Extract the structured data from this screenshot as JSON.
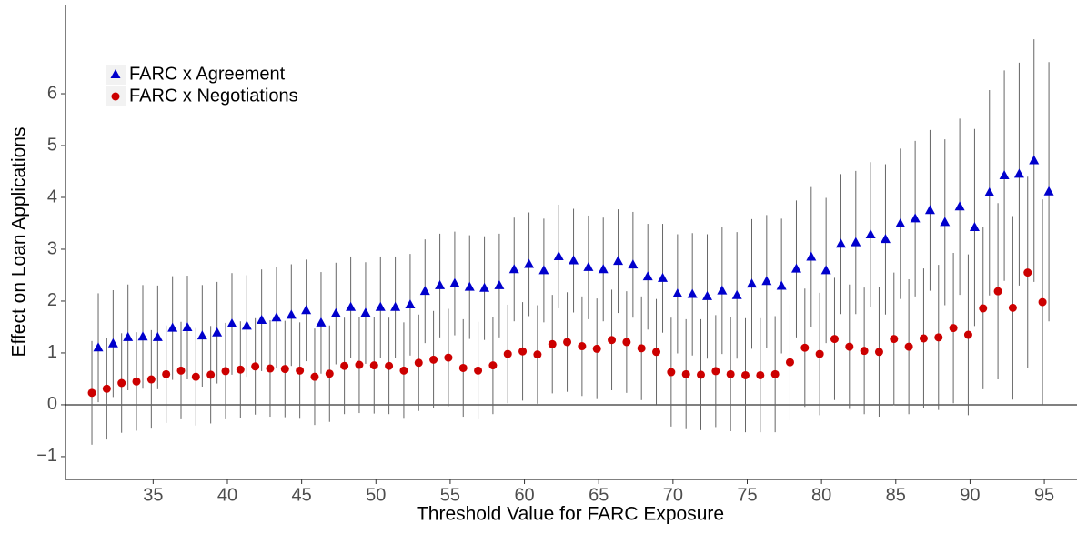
{
  "chart_data": {
    "type": "scatter",
    "xlabel": "Threshold Value for FARC Exposure",
    "ylabel": "Effect on Loan Applications",
    "x": [
      31,
      32,
      33,
      34,
      35,
      36,
      37,
      38,
      39,
      40,
      41,
      42,
      43,
      44,
      45,
      46,
      47,
      48,
      49,
      50,
      51,
      52,
      53,
      54,
      55,
      56,
      57,
      58,
      59,
      60,
      61,
      62,
      63,
      64,
      65,
      66,
      67,
      68,
      69,
      70,
      71,
      72,
      73,
      74,
      75,
      76,
      77,
      78,
      79,
      80,
      81,
      82,
      83,
      84,
      85,
      86,
      87,
      88,
      89,
      90,
      91,
      92,
      93,
      94,
      95
    ],
    "series": [
      {
        "name": "FARC x Agreement",
        "color": "#0000cc",
        "marker": "triangle",
        "values": [
          1.1,
          1.18,
          1.3,
          1.31,
          1.3,
          1.48,
          1.49,
          1.33,
          1.39,
          1.56,
          1.52,
          1.63,
          1.68,
          1.73,
          1.82,
          1.58,
          1.76,
          1.88,
          1.77,
          1.88,
          1.88,
          1.93,
          2.19,
          2.3,
          2.34,
          2.27,
          2.25,
          2.3,
          2.61,
          2.71,
          2.59,
          2.86,
          2.78,
          2.65,
          2.61,
          2.77,
          2.7,
          2.47,
          2.44,
          2.14,
          2.13,
          2.09,
          2.2,
          2.11,
          2.33,
          2.38,
          2.29,
          2.62,
          2.85,
          2.59,
          3.1,
          3.13,
          3.28,
          3.19,
          3.49,
          3.59,
          3.75,
          3.52,
          3.82,
          3.42,
          4.09,
          4.42,
          4.45,
          4.71,
          4.11
        ],
        "errors": [
          1.05,
          1.03,
          1.02,
          1.0,
          1.0,
          1.0,
          1.0,
          0.98,
          0.98,
          0.98,
          0.98,
          0.98,
          0.98,
          0.98,
          0.98,
          0.98,
          0.98,
          0.98,
          0.98,
          0.98,
          0.98,
          0.98,
          1.0,
          1.0,
          1.0,
          1.0,
          1.0,
          1.0,
          1.0,
          1.0,
          1.0,
          1.0,
          1.0,
          1.0,
          1.0,
          1.0,
          1.02,
          1.02,
          1.05,
          1.15,
          1.18,
          1.2,
          1.22,
          1.22,
          1.25,
          1.28,
          1.3,
          1.32,
          1.35,
          1.4,
          1.35,
          1.38,
          1.4,
          1.45,
          1.45,
          1.5,
          1.55,
          1.6,
          1.7,
          1.9,
          1.98,
          2.03,
          2.15,
          2.34,
          2.5
        ]
      },
      {
        "name": "FARC x Negotiations",
        "color": "#cc0000",
        "marker": "circle",
        "values": [
          0.23,
          0.31,
          0.42,
          0.45,
          0.49,
          0.59,
          0.66,
          0.54,
          0.58,
          0.65,
          0.68,
          0.74,
          0.7,
          0.69,
          0.66,
          0.54,
          0.6,
          0.75,
          0.77,
          0.76,
          0.75,
          0.66,
          0.81,
          0.87,
          0.91,
          0.71,
          0.66,
          0.76,
          0.98,
          1.03,
          0.97,
          1.17,
          1.21,
          1.13,
          1.08,
          1.25,
          1.21,
          1.09,
          1.02,
          0.63,
          0.59,
          0.58,
          0.65,
          0.59,
          0.57,
          0.57,
          0.59,
          0.82,
          1.1,
          0.98,
          1.27,
          1.12,
          1.04,
          1.02,
          1.27,
          1.12,
          1.28,
          1.3,
          1.48,
          1.35,
          1.86,
          2.19,
          1.87,
          2.55,
          1.98
        ],
        "errors": [
          1.0,
          0.98,
          0.96,
          0.95,
          0.95,
          0.94,
          0.94,
          0.94,
          0.94,
          0.93,
          0.93,
          0.93,
          0.93,
          0.93,
          0.93,
          0.93,
          0.93,
          0.93,
          0.93,
          0.93,
          0.93,
          0.93,
          0.93,
          0.94,
          0.94,
          0.94,
          0.94,
          0.94,
          0.95,
          0.95,
          0.95,
          0.95,
          0.96,
          0.96,
          0.97,
          0.97,
          0.98,
          1.0,
          1.02,
          1.05,
          1.06,
          1.07,
          1.08,
          1.1,
          1.1,
          1.1,
          1.12,
          1.12,
          1.14,
          1.18,
          1.18,
          1.2,
          1.22,
          1.25,
          1.28,
          1.3,
          1.35,
          1.4,
          1.45,
          1.55,
          1.56,
          1.7,
          1.77,
          1.85,
          1.98
        ]
      }
    ],
    "xlim": [
      29.1,
      97.2
    ],
    "ylim": [
      -1.44,
      7.72
    ],
    "xticks": [
      35,
      40,
      45,
      50,
      55,
      60,
      65,
      70,
      75,
      80,
      85,
      90,
      95
    ],
    "yticks": [
      {
        "value": -1,
        "label": "−1"
      },
      0,
      1,
      2,
      3,
      4,
      5,
      6
    ],
    "reference_line": 0,
    "legend": "top-left"
  }
}
